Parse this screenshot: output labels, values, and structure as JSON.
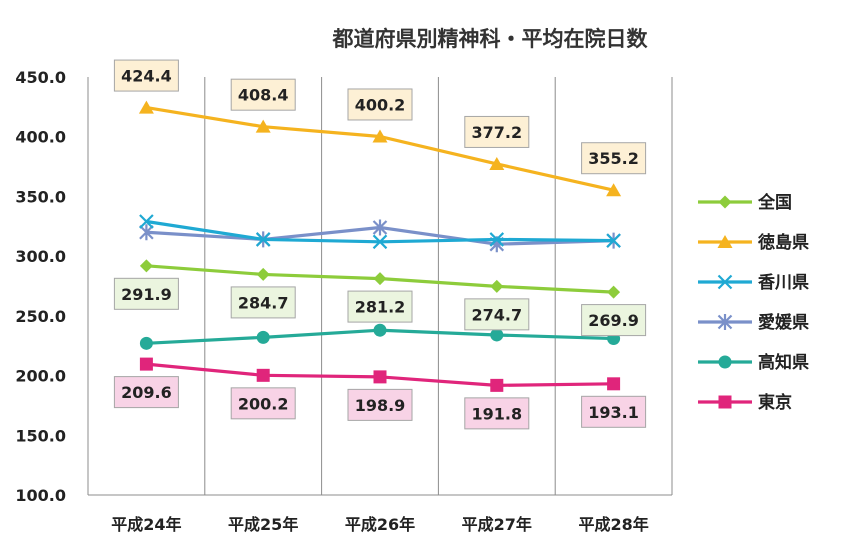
{
  "chart_data": {
    "type": "line",
    "title": "都道府県別精神科・平均在院日数",
    "categories": [
      "平成24年",
      "平成25年",
      "平成26年",
      "平成27年",
      "平成28年"
    ],
    "ylim": [
      100,
      450
    ],
    "yticks": [
      "100.0",
      "150.0",
      "200.0",
      "250.0",
      "300.0",
      "350.0",
      "400.0",
      "450.0"
    ],
    "xlabel": "",
    "ylabel": "",
    "grid": "vertical",
    "legend": "right",
    "series": [
      {
        "name": "全国",
        "values": [
          291.9,
          284.7,
          281.2,
          274.7,
          269.9
        ],
        "color": "#8DCC3B",
        "marker": "diamond",
        "labels": [
          "291.9",
          "284.7",
          "281.2",
          "274.7",
          "269.9"
        ],
        "label_pos": "below",
        "label_bg": "#EBF5DF"
      },
      {
        "name": "徳島県",
        "values": [
          424.4,
          408.4,
          400.2,
          377.2,
          355.2
        ],
        "color": "#F5B31F",
        "marker": "triangle",
        "labels": [
          "424.4",
          "408.4",
          "400.2",
          "377.2",
          "355.2"
        ],
        "label_pos": "above",
        "label_bg": "#FDF0D5"
      },
      {
        "name": "香川県",
        "values": [
          329,
          314,
          312,
          314,
          313
        ],
        "color": "#1FA9D3",
        "marker": "x"
      },
      {
        "name": "愛媛県",
        "values": [
          320,
          314,
          324,
          310,
          313
        ],
        "color": "#7A90C9",
        "marker": "star"
      },
      {
        "name": "高知県",
        "values": [
          227,
          232,
          238,
          234,
          231
        ],
        "color": "#25AA98",
        "marker": "circle"
      },
      {
        "name": "東京",
        "values": [
          209.6,
          200.2,
          198.9,
          191.8,
          193.1
        ],
        "color": "#E0257B",
        "marker": "square",
        "labels": [
          "209.6",
          "200.2",
          "198.9",
          "191.8",
          "193.1"
        ],
        "label_pos": "below",
        "label_bg": "#F8D3E6"
      }
    ]
  }
}
